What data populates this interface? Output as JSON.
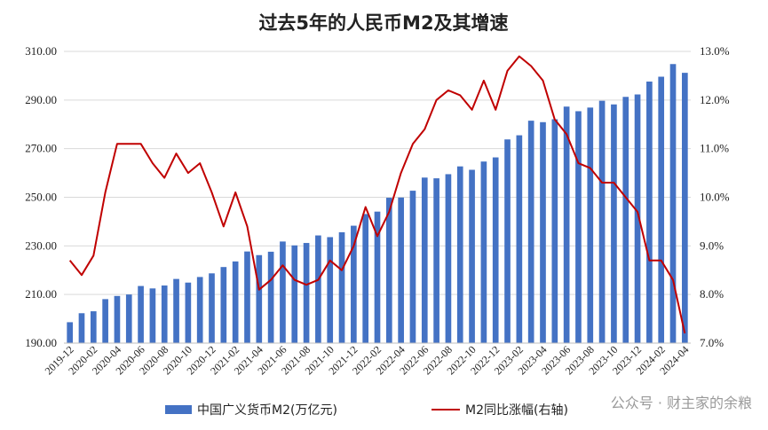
{
  "chart_data": {
    "type": "bar",
    "title": "过去5年的人民币M2及其增速",
    "categories": [
      "2019-12",
      "2020-01",
      "2020-02",
      "2020-03",
      "2020-04",
      "2020-05",
      "2020-06",
      "2020-07",
      "2020-08",
      "2020-09",
      "2020-10",
      "2020-11",
      "2020-12",
      "2021-01",
      "2021-02",
      "2021-03",
      "2021-04",
      "2021-05",
      "2021-06",
      "2021-07",
      "2021-08",
      "2021-09",
      "2021-10",
      "2021-11",
      "2021-12",
      "2022-01",
      "2022-02",
      "2022-03",
      "2022-04",
      "2022-05",
      "2022-06",
      "2022-07",
      "2022-08",
      "2022-09",
      "2022-10",
      "2022-11",
      "2022-12",
      "2023-01",
      "2023-02",
      "2023-03",
      "2023-04",
      "2023-05",
      "2023-06",
      "2023-07",
      "2023-08",
      "2023-09",
      "2023-10",
      "2023-11",
      "2023-12",
      "2024-01",
      "2024-02",
      "2024-03",
      "2024-04"
    ],
    "x_tick_labels": [
      "2019-12",
      "2020-02",
      "2020-04",
      "2020-06",
      "2020-08",
      "2020-10",
      "2020-12",
      "2021-02",
      "2021-04",
      "2021-06",
      "2021-08",
      "2021-10",
      "2021-12",
      "2022-02",
      "2022-04",
      "2022-06",
      "2022-08",
      "2022-10",
      "2022-12",
      "2023-02",
      "2023-04",
      "2023-06",
      "2023-08",
      "2023-10",
      "2023-12",
      "2024-02",
      "2024-04"
    ],
    "y_left": {
      "ylim": [
        190,
        310
      ],
      "ticks": [
        "190.00",
        "210.00",
        "230.00",
        "250.00",
        "270.00",
        "290.00",
        "310.00"
      ]
    },
    "y_right": {
      "ylim": [
        7.0,
        13.0
      ],
      "ticks": [
        "7.0%",
        "8.0%",
        "9.0%",
        "10.0%",
        "11.0%",
        "12.0%",
        "13.0%"
      ]
    },
    "grid": "horizontal",
    "legend_position": "bottom",
    "series": [
      {
        "name": "中国广义货币M2(万亿元)",
        "type": "bar",
        "axis": "left",
        "color": "#4472C4",
        "values": [
          198.6,
          202.3,
          203.1,
          208.1,
          209.4,
          210.0,
          213.5,
          212.5,
          213.7,
          216.4,
          214.9,
          217.2,
          218.7,
          221.3,
          223.6,
          227.7,
          226.2,
          227.6,
          231.8,
          230.2,
          231.2,
          234.3,
          233.6,
          235.6,
          238.3,
          243.1,
          244.1,
          249.8,
          249.9,
          252.7,
          258.1,
          257.8,
          259.5,
          262.7,
          261.3,
          264.7,
          266.4,
          273.8,
          275.5,
          281.5,
          280.9,
          282.1,
          287.3,
          285.4,
          286.9,
          289.7,
          288.2,
          291.3,
          292.3,
          297.6,
          299.6,
          304.8,
          301.2
        ]
      },
      {
        "name": "M2同比涨幅(右轴)",
        "type": "line",
        "axis": "right",
        "color": "#C00000",
        "values": [
          8.7,
          8.4,
          8.8,
          10.1,
          11.1,
          11.1,
          11.1,
          10.7,
          10.4,
          10.9,
          10.5,
          10.7,
          10.1,
          9.4,
          10.1,
          9.4,
          8.1,
          8.3,
          8.6,
          8.3,
          8.2,
          8.3,
          8.7,
          8.5,
          9.0,
          9.8,
          9.2,
          9.7,
          10.5,
          11.1,
          11.4,
          12.0,
          12.2,
          12.1,
          11.8,
          12.4,
          11.8,
          12.6,
          12.9,
          12.7,
          12.4,
          11.6,
          11.3,
          10.7,
          10.6,
          10.3,
          10.3,
          10.0,
          9.7,
          8.7,
          8.7,
          8.3,
          7.2
        ]
      }
    ]
  },
  "watermark": "公众号 · 财主家的余粮"
}
